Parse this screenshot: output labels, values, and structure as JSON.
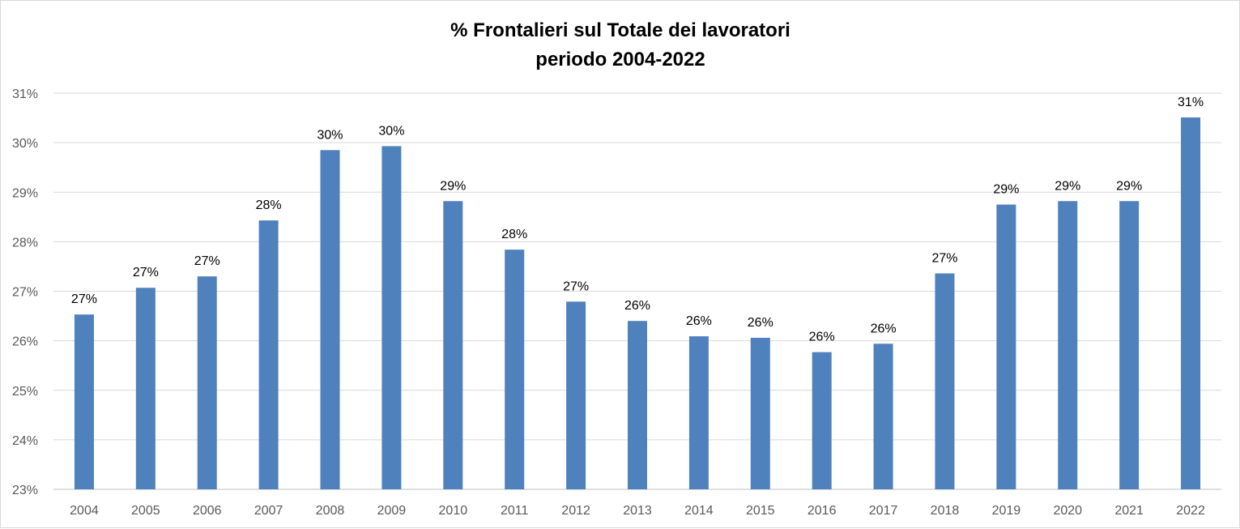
{
  "chart_data": {
    "type": "bar",
    "title": "% Frontalieri sul Totale dei lavoratori",
    "subtitle": "periodo 2004-2022",
    "xlabel": "",
    "ylabel": "",
    "ylim": [
      23,
      31
    ],
    "grid": true,
    "legend": "none",
    "bar_color": "#4f81bd",
    "y_ticks": [
      {
        "value": 23,
        "label": "23%"
      },
      {
        "value": 24,
        "label": "24%"
      },
      {
        "value": 25,
        "label": "25%"
      },
      {
        "value": 26,
        "label": "26%"
      },
      {
        "value": 27,
        "label": "27%"
      },
      {
        "value": 28,
        "label": "28%"
      },
      {
        "value": 29,
        "label": "29%"
      },
      {
        "value": 30,
        "label": "30%"
      },
      {
        "value": 31,
        "label": "31%"
      }
    ],
    "categories": [
      "2004",
      "2005",
      "2006",
      "2007",
      "2008",
      "2009",
      "2010",
      "2011",
      "2012",
      "2013",
      "2014",
      "2015",
      "2016",
      "2017",
      "2018",
      "2019",
      "2020",
      "2021",
      "2022"
    ],
    "values": [
      26.53,
      27.07,
      27.3,
      28.43,
      29.85,
      29.93,
      28.82,
      27.84,
      26.79,
      26.4,
      26.09,
      26.06,
      25.77,
      25.94,
      27.36,
      28.75,
      28.82,
      28.82,
      30.51
    ],
    "data_labels": [
      "27%",
      "27%",
      "27%",
      "28%",
      "30%",
      "30%",
      "29%",
      "28%",
      "27%",
      "26%",
      "26%",
      "26%",
      "26%",
      "26%",
      "27%",
      "29%",
      "29%",
      "29%",
      "31%"
    ]
  }
}
